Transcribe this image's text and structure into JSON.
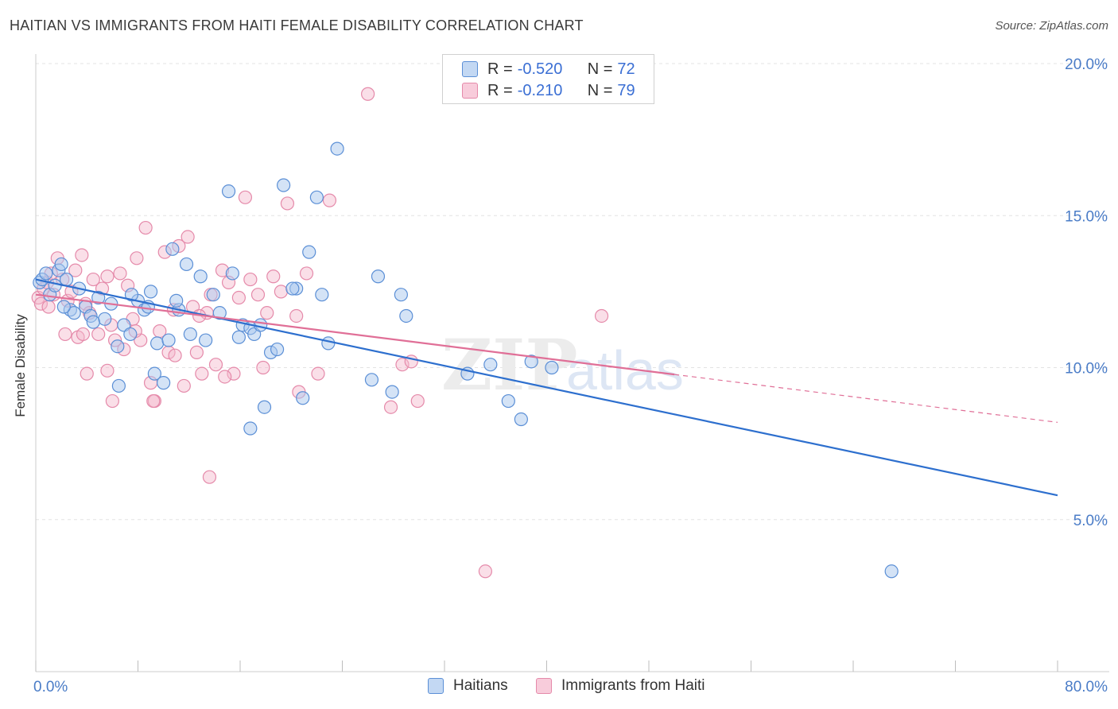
{
  "header": {
    "title": "HAITIAN VS IMMIGRANTS FROM HAITI FEMALE DISABILITY CORRELATION CHART",
    "source": "Source: ZipAtlas.com"
  },
  "watermark": {
    "text_zip": "ZIP",
    "text_atlas": "atlas"
  },
  "legend_top": {
    "rows": [
      {
        "r_label": "R =",
        "r_value": "-0.520",
        "n_label": "N =",
        "n_value": "72"
      },
      {
        "r_label": "R =",
        "r_value": "-0.210",
        "n_label": "N =",
        "n_value": "79"
      }
    ]
  },
  "legend_bottom": {
    "items": [
      "Haitians",
      "Immigrants from Haiti"
    ]
  },
  "colors": {
    "blue_fill": "#a9c7ee",
    "blue_stroke": "#5b8fd6",
    "blue_line": "#2d6fce",
    "pink_fill": "#f5b8cd",
    "pink_stroke": "#e58aaa",
    "pink_line": "#e06f97",
    "grid": "#e3e3e3",
    "tick_text": "#4a7cc7"
  },
  "chart_data": {
    "type": "scatter",
    "title": "HAITIAN VS IMMIGRANTS FROM HAITI FEMALE DISABILITY CORRELATION CHART",
    "xlabel": "",
    "ylabel": "Female Disability",
    "xlim": [
      0,
      80
    ],
    "ylim": [
      0,
      20
    ],
    "x_tick_labels": [
      "0.0%",
      "80.0%"
    ],
    "y_tick_labels": [
      "5.0%",
      "10.0%",
      "15.0%",
      "20.0%"
    ],
    "y_ticks": [
      5,
      10,
      15,
      20
    ],
    "grid": true,
    "legend_position": "top-center",
    "series": [
      {
        "name": "Haitians",
        "r": -0.52,
        "n": 72,
        "trend": {
          "x0": 0,
          "y0": 12.9,
          "x1": 80,
          "y1": 5.8,
          "dashed_from": null
        },
        "points": [
          [
            0.3,
            12.8
          ],
          [
            0.5,
            12.9
          ],
          [
            0.8,
            13.1
          ],
          [
            1.1,
            12.4
          ],
          [
            1.5,
            12.7
          ],
          [
            1.8,
            13.2
          ],
          [
            2.0,
            13.4
          ],
          [
            2.4,
            12.9
          ],
          [
            2.7,
            11.9
          ],
          [
            3.0,
            11.8
          ],
          [
            3.4,
            12.6
          ],
          [
            3.9,
            12.0
          ],
          [
            4.3,
            11.7
          ],
          [
            4.9,
            12.3
          ],
          [
            5.4,
            11.6
          ],
          [
            5.9,
            12.1
          ],
          [
            6.4,
            10.7
          ],
          [
            6.9,
            11.4
          ],
          [
            7.4,
            11.1
          ],
          [
            8.0,
            12.2
          ],
          [
            8.5,
            11.9
          ],
          [
            9.0,
            12.5
          ],
          [
            9.5,
            10.8
          ],
          [
            10.0,
            9.5
          ],
          [
            10.4,
            10.9
          ],
          [
            10.7,
            13.9
          ],
          [
            11.2,
            11.9
          ],
          [
            11.8,
            13.4
          ],
          [
            12.1,
            11.1
          ],
          [
            12.9,
            13.0
          ],
          [
            13.3,
            10.9
          ],
          [
            13.9,
            12.4
          ],
          [
            14.4,
            11.8
          ],
          [
            15.1,
            15.8
          ],
          [
            15.4,
            13.1
          ],
          [
            15.9,
            11.0
          ],
          [
            16.2,
            11.4
          ],
          [
            16.8,
            11.3
          ],
          [
            17.1,
            11.1
          ],
          [
            17.6,
            11.4
          ],
          [
            17.9,
            8.7
          ],
          [
            18.4,
            10.5
          ],
          [
            18.9,
            10.6
          ],
          [
            19.4,
            16.0
          ],
          [
            20.4,
            12.6
          ],
          [
            20.1,
            12.6
          ],
          [
            20.9,
            9.0
          ],
          [
            21.4,
            13.8
          ],
          [
            22.0,
            15.6
          ],
          [
            22.4,
            12.4
          ],
          [
            22.9,
            10.8
          ],
          [
            23.6,
            17.2
          ],
          [
            26.3,
            9.6
          ],
          [
            26.8,
            13.0
          ],
          [
            27.9,
            9.2
          ],
          [
            28.6,
            12.4
          ],
          [
            29.0,
            11.7
          ],
          [
            33.8,
            9.8
          ],
          [
            35.6,
            10.1
          ],
          [
            37.0,
            8.9
          ],
          [
            38.0,
            8.3
          ],
          [
            38.8,
            10.2
          ],
          [
            40.4,
            10.0
          ],
          [
            6.5,
            9.4
          ],
          [
            9.3,
            9.8
          ],
          [
            16.8,
            8.0
          ],
          [
            7.5,
            12.4
          ],
          [
            2.2,
            12.0
          ],
          [
            11.0,
            12.2
          ],
          [
            4.5,
            11.5
          ],
          [
            8.8,
            12.0
          ],
          [
            67.0,
            3.3
          ]
        ]
      },
      {
        "name": "Immigrants from Haiti",
        "r": -0.21,
        "n": 79,
        "trend": {
          "x0": 0,
          "y0": 12.4,
          "x1": 80,
          "y1": 8.2,
          "solid_until": 50
        },
        "points": [
          [
            0.2,
            12.3
          ],
          [
            0.4,
            12.1
          ],
          [
            0.6,
            12.6
          ],
          [
            0.9,
            12.8
          ],
          [
            1.2,
            13.1
          ],
          [
            1.4,
            12.4
          ],
          [
            1.7,
            13.6
          ],
          [
            2.1,
            12.9
          ],
          [
            2.5,
            12.2
          ],
          [
            2.8,
            12.5
          ],
          [
            3.1,
            13.2
          ],
          [
            3.3,
            11.0
          ],
          [
            3.6,
            13.7
          ],
          [
            3.9,
            12.1
          ],
          [
            4.2,
            11.8
          ],
          [
            4.5,
            12.9
          ],
          [
            4.9,
            11.1
          ],
          [
            5.2,
            12.6
          ],
          [
            5.6,
            13.0
          ],
          [
            5.9,
            11.4
          ],
          [
            6.2,
            10.9
          ],
          [
            6.6,
            13.1
          ],
          [
            6.9,
            10.6
          ],
          [
            7.2,
            12.7
          ],
          [
            7.6,
            11.6
          ],
          [
            7.9,
            13.6
          ],
          [
            8.2,
            10.9
          ],
          [
            8.6,
            14.6
          ],
          [
            9.0,
            9.5
          ],
          [
            9.3,
            8.9
          ],
          [
            9.7,
            11.2
          ],
          [
            10.1,
            13.8
          ],
          [
            10.4,
            10.5
          ],
          [
            10.8,
            11.9
          ],
          [
            11.2,
            14.0
          ],
          [
            11.6,
            9.4
          ],
          [
            11.9,
            14.3
          ],
          [
            12.3,
            12.0
          ],
          [
            12.6,
            10.5
          ],
          [
            13.0,
            9.8
          ],
          [
            13.4,
            11.8
          ],
          [
            13.7,
            12.4
          ],
          [
            14.1,
            10.1
          ],
          [
            14.6,
            13.2
          ],
          [
            15.1,
            12.8
          ],
          [
            15.5,
            9.8
          ],
          [
            15.9,
            12.3
          ],
          [
            16.4,
            15.6
          ],
          [
            16.8,
            12.9
          ],
          [
            17.4,
            12.4
          ],
          [
            18.1,
            11.8
          ],
          [
            18.6,
            13.0
          ],
          [
            19.2,
            12.5
          ],
          [
            19.7,
            15.4
          ],
          [
            20.4,
            11.7
          ],
          [
            21.2,
            13.1
          ],
          [
            22.1,
            9.8
          ],
          [
            23.0,
            15.5
          ],
          [
            26.0,
            19.0
          ],
          [
            27.8,
            8.7
          ],
          [
            28.7,
            10.1
          ],
          [
            29.4,
            10.2
          ],
          [
            29.9,
            8.9
          ],
          [
            44.3,
            11.7
          ],
          [
            35.2,
            3.3
          ],
          [
            4.0,
            9.8
          ],
          [
            6.0,
            8.9
          ],
          [
            9.2,
            8.9
          ],
          [
            13.6,
            6.4
          ],
          [
            17.8,
            10.0
          ],
          [
            20.6,
            9.2
          ],
          [
            10.9,
            10.4
          ],
          [
            2.3,
            11.1
          ],
          [
            5.6,
            9.9
          ],
          [
            7.8,
            11.2
          ],
          [
            12.8,
            11.7
          ],
          [
            14.8,
            9.7
          ],
          [
            3.7,
            11.1
          ],
          [
            1.0,
            12.0
          ]
        ]
      }
    ]
  }
}
